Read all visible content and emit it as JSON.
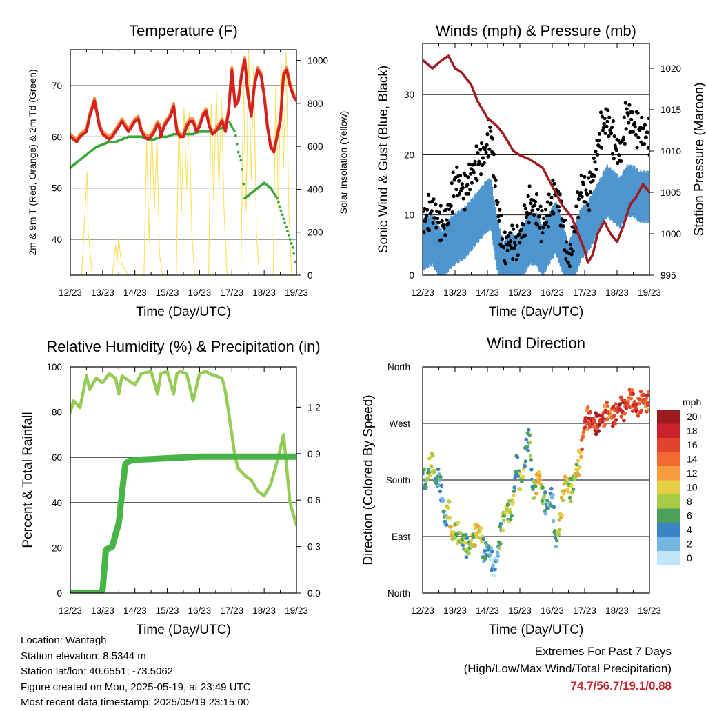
{
  "x_ticks": [
    "12/23",
    "13/23",
    "14/23",
    "15/23",
    "16/23",
    "17/23",
    "18/23",
    "19/23"
  ],
  "x_label": "Time (Day/UTC)",
  "colors": {
    "temp_red": "#d42020",
    "temp_orange": "#f08a3c",
    "dewpoint_green": "#3aa63a",
    "solar_yellow": "#f8e060",
    "gust_black": "#000000",
    "wind_blue": "#4f95cf",
    "pressure_maroon": "#a01c22",
    "rh_lightgreen": "#95cc55",
    "precip_green": "#47b445"
  },
  "chart_data": [
    {
      "type": "line",
      "title": "Temperature (F)",
      "xlabel": "Time (Day/UTC)",
      "ylabel": "2m & 9m T (Red, Orange) & 2m Td (Green)",
      "y2label": "Solar Insolation (Yellow)",
      "ylim": [
        33,
        77
      ],
      "y_ticks": [
        40,
        50,
        60,
        70
      ],
      "y2lim": [
        0,
        1050
      ],
      "y2_ticks": [
        0,
        200,
        400,
        600,
        800,
        1000
      ],
      "series": [
        {
          "key": "temp",
          "x": [
            0,
            0.1,
            0.2,
            0.3,
            0.4,
            0.5,
            0.6,
            0.75,
            0.9,
            1.0,
            1.1,
            1.2,
            1.3,
            1.4,
            1.5,
            1.6,
            1.7,
            1.8,
            1.9,
            2.0,
            2.1,
            2.2,
            2.3,
            2.4,
            2.5,
            2.6,
            2.7,
            2.75,
            2.8,
            2.9,
            3.0,
            3.1,
            3.2,
            3.3,
            3.4,
            3.5,
            3.6,
            3.7,
            3.8,
            3.9,
            4.0,
            4.1,
            4.2,
            4.3,
            4.4,
            4.5,
            4.6,
            4.7,
            4.8,
            4.9,
            5.0,
            5.1,
            5.2,
            5.3,
            5.4,
            5.5,
            5.6,
            5.7,
            5.8,
            5.9,
            6.0,
            6.1,
            6.2,
            6.3,
            6.4,
            6.5,
            6.6,
            6.7,
            6.8,
            6.9,
            7.0
          ],
          "values": [
            60,
            59.5,
            59,
            60,
            60.5,
            61,
            64,
            67,
            62,
            60.5,
            60,
            59.5,
            60,
            61,
            62,
            63,
            62,
            61,
            62,
            63,
            63.5,
            61,
            60,
            59.5,
            60,
            61,
            62.5,
            62,
            60,
            62,
            63,
            64,
            66,
            61,
            60,
            60,
            62,
            63,
            63,
            61,
            62,
            64,
            65,
            62,
            60.5,
            61,
            62,
            63,
            61,
            65,
            73,
            66,
            67,
            72,
            75,
            68,
            64,
            70,
            73,
            72,
            68,
            62,
            58,
            57,
            60,
            63,
            72,
            73,
            70,
            68,
            67
          ]
        },
        {
          "key": "dewpoint",
          "x": [
            0,
            0.2,
            0.4,
            0.6,
            0.8,
            1.0,
            1.2,
            1.4,
            1.6,
            1.8,
            2.0,
            2.2,
            2.4,
            2.6,
            2.8,
            3.0,
            3.2,
            3.4,
            3.6,
            3.8,
            4.0,
            4.2,
            4.4,
            4.6,
            4.8,
            4.9,
            5.0,
            5.1,
            5.2,
            5.3,
            5.4,
            5.6,
            5.8,
            6.0,
            6.2,
            6.3,
            6.4,
            6.5,
            6.6,
            6.7,
            6.8,
            6.9,
            7.0
          ],
          "values": [
            54,
            55,
            56,
            57,
            58,
            58.5,
            59,
            59,
            59.5,
            60,
            60,
            60,
            59.5,
            59.5,
            60,
            60,
            60.5,
            60.5,
            60.5,
            60.5,
            61,
            61,
            61,
            61.5,
            62,
            63,
            62,
            61,
            57,
            55,
            48,
            49,
            50,
            51,
            50,
            49,
            48,
            46,
            44,
            42,
            40,
            38,
            34
          ]
        },
        {
          "key": "solar",
          "x": [
            0.35,
            0.52,
            0.55,
            0.68,
            0.9,
            1.3,
            1.4,
            1.45,
            1.5,
            1.55,
            1.6,
            1.8,
            2.28,
            2.36,
            2.44,
            2.52,
            2.6,
            2.68,
            2.76,
            2.85,
            3.28,
            3.36,
            3.44,
            3.52,
            3.6,
            3.68,
            3.76,
            3.85,
            4.28,
            4.36,
            4.44,
            4.52,
            4.6,
            4.68,
            4.76,
            4.85,
            5.28,
            5.36,
            5.44,
            5.52,
            5.6,
            5.68,
            5.76,
            5.85,
            6.28,
            6.36,
            6.44,
            6.52,
            6.6,
            6.68,
            6.76,
            6.85
          ],
          "values": [
            0,
            480,
            200,
            0,
            0,
            0,
            140,
            60,
            180,
            90,
            50,
            0,
            0,
            620,
            150,
            700,
            300,
            640,
            100,
            0,
            0,
            720,
            300,
            780,
            400,
            760,
            200,
            0,
            0,
            800,
            350,
            860,
            400,
            820,
            300,
            0,
            0,
            900,
            300,
            1040,
            450,
            980,
            200,
            0,
            0,
            880,
            300,
            1000,
            500,
            1040,
            300,
            0
          ]
        }
      ]
    },
    {
      "type": "line",
      "title": "Winds (mph) & Pressure (mb)",
      "xlabel": "Time (Day/UTC)",
      "ylabel": "Sonic Wind & Gust (Blue, Black)",
      "y2label": "Station Pressure (Maroon)",
      "ylim": [
        0,
        38.5
      ],
      "y_ticks": [
        0,
        10,
        20,
        30
      ],
      "y2lim": [
        995,
        1023
      ],
      "y2_ticks": [
        995,
        1000,
        1005,
        1010,
        1015,
        1020
      ],
      "series": [
        {
          "key": "gust",
          "x": [
            0,
            0.3,
            0.6,
            0.8,
            1.0,
            1.3,
            1.6,
            1.9,
            2.1,
            2.3,
            2.5,
            2.7,
            2.9,
            3.1,
            3.3,
            3.5,
            3.7,
            3.9,
            4.1,
            4.3,
            4.5,
            4.7,
            4.9,
            5.1,
            5.3,
            5.5,
            5.7,
            5.9,
            6.1,
            6.3,
            6.5,
            6.7,
            7.0
          ],
          "values": [
            9,
            11,
            8,
            10,
            16,
            14,
            18,
            20,
            24,
            12,
            4,
            6,
            5,
            8,
            12,
            11,
            8,
            11,
            14,
            10,
            2,
            8,
            15,
            13,
            18,
            24,
            26,
            22,
            20,
            27,
            25,
            24,
            23
          ]
        },
        {
          "key": "wind",
          "x": [
            0,
            0.3,
            0.6,
            0.8,
            1.0,
            1.3,
            1.6,
            1.9,
            2.1,
            2.3,
            2.5,
            2.7,
            2.9,
            3.1,
            3.3,
            3.5,
            3.7,
            3.9,
            4.1,
            4.3,
            4.5,
            4.7,
            4.9,
            5.1,
            5.3,
            5.5,
            5.7,
            5.9,
            6.1,
            6.3,
            6.5,
            6.7,
            7.0
          ],
          "values": [
            5,
            6,
            3,
            5,
            6,
            7,
            9,
            11,
            12,
            5,
            1,
            3,
            2,
            4,
            6,
            6,
            4,
            6,
            8,
            5,
            1,
            4,
            7,
            8,
            10,
            12,
            14,
            13,
            12,
            14,
            14,
            13,
            13
          ]
        },
        {
          "key": "pressure",
          "x": [
            0,
            0.3,
            0.6,
            0.8,
            1.0,
            1.2,
            1.5,
            1.7,
            2.0,
            2.3,
            2.5,
            2.8,
            3.0,
            3.3,
            3.5,
            3.7,
            3.9,
            4.1,
            4.3,
            4.6,
            4.8,
            5.0,
            5.1,
            5.25,
            5.4,
            5.6,
            5.8,
            6.0,
            6.2,
            6.4,
            6.6,
            6.8,
            7.0
          ],
          "values": [
            1021,
            1020,
            1021,
            1021.5,
            1020,
            1019.5,
            1018,
            1016,
            1014,
            1013,
            1012,
            1010,
            1009.5,
            1009,
            1008.5,
            1008,
            1006.5,
            1005,
            1003.5,
            1002,
            1000,
            998,
            996.5,
            997.5,
            1000,
            1001.5,
            1000,
            999,
            1001,
            1003.5,
            1004.5,
            1006,
            1005
          ]
        }
      ]
    },
    {
      "type": "line",
      "title": "Relative Humidity (%) & Precipitation (in)",
      "xlabel": "Time (Day/UTC)",
      "ylabel": "Percent & Total Rainfall",
      "ylim": [
        0,
        100
      ],
      "y_ticks": [
        0,
        20,
        40,
        60,
        80,
        100
      ],
      "y2lim": [
        0,
        1.46
      ],
      "y2_ticks": [
        "0.0",
        "0.3",
        "0.6",
        "0.9",
        "1.2"
      ],
      "series": [
        {
          "key": "rh",
          "x": [
            0,
            0.1,
            0.3,
            0.5,
            0.6,
            0.8,
            1.0,
            1.2,
            1.4,
            1.5,
            1.6,
            1.8,
            2.0,
            2.2,
            2.5,
            2.7,
            2.8,
            3.0,
            3.2,
            3.3,
            3.4,
            3.6,
            3.8,
            4.0,
            4.2,
            4.3,
            4.5,
            4.7,
            4.8,
            4.9,
            5.0,
            5.1,
            5.2,
            5.4,
            5.6,
            5.8,
            6.0,
            6.2,
            6.4,
            6.6,
            6.8,
            7.0
          ],
          "values": [
            80,
            85,
            82,
            96,
            90,
            95,
            93,
            97,
            95,
            88,
            96,
            94,
            92,
            97,
            98,
            88,
            97,
            98,
            88,
            97,
            98,
            97,
            85,
            97,
            98,
            97,
            96,
            95,
            89,
            80,
            70,
            60,
            55,
            52,
            50,
            45,
            43,
            48,
            58,
            70,
            40,
            30
          ]
        },
        {
          "key": "precip",
          "x": [
            0,
            0.5,
            0.9,
            1.0,
            1.05,
            1.1,
            1.3,
            1.4,
            1.5,
            1.6,
            1.7,
            1.8,
            2.0,
            2.5,
            3.0,
            3.5,
            4.0,
            4.5,
            5.0,
            5.5,
            6.0,
            6.5,
            7.0
          ],
          "values": [
            0,
            0,
            0,
            0.02,
            0.15,
            0.28,
            0.3,
            0.38,
            0.45,
            0.65,
            0.83,
            0.85,
            0.86,
            0.865,
            0.87,
            0.875,
            0.88,
            0.88,
            0.88,
            0.88,
            0.88,
            0.88,
            0.88
          ]
        }
      ]
    },
    {
      "type": "scatter",
      "title": "Wind Direction",
      "xlabel": "Time (Day/UTC)",
      "ylabel": "Direction (Colored By Speed)",
      "ylim": [
        0,
        360
      ],
      "y_ticks": [
        "North",
        "East",
        "South",
        "West",
        "North"
      ],
      "legend_title": "mph",
      "legend_labels": [
        "20+",
        "18",
        "16",
        "14",
        "12",
        "10",
        "8",
        "6",
        "4",
        "2",
        "0"
      ],
      "legend_colors": [
        "#9b1c1f",
        "#c8232a",
        "#e0442c",
        "#f06a30",
        "#f59d3c",
        "#e6cf45",
        "#a6cb44",
        "#4aa15a",
        "#3a84c3",
        "#74b6e2",
        "#bfe5f8"
      ],
      "series": [
        {
          "key": "dir",
          "x": [
            0,
            0.1,
            0.2,
            0.3,
            0.4,
            0.5,
            0.6,
            0.7,
            0.8,
            0.9,
            1.0,
            1.1,
            1.2,
            1.3,
            1.4,
            1.5,
            1.6,
            1.7,
            1.8,
            1.9,
            2.0,
            2.1,
            2.2,
            2.3,
            2.4,
            2.5,
            2.6,
            2.7,
            2.8,
            2.9,
            3.0,
            3.1,
            3.2,
            3.3,
            3.4,
            3.5,
            3.6,
            3.7,
            3.8,
            3.9,
            4.0,
            4.1,
            4.2,
            4.3,
            4.4,
            4.5,
            4.6,
            4.7,
            4.8,
            4.9,
            5.0,
            5.1,
            5.2,
            5.3,
            5.4,
            5.5,
            5.6,
            5.7,
            5.8,
            5.9,
            6.0,
            6.1,
            6.2,
            6.3,
            6.4,
            6.5,
            6.6,
            6.7,
            6.8,
            6.9,
            7.0
          ],
          "values": [
            190,
            170,
            200,
            210,
            175,
            185,
            155,
            110,
            140,
            90,
            100,
            95,
            85,
            80,
            70,
            80,
            90,
            100,
            95,
            60,
            75,
            60,
            40,
            55,
            95,
            120,
            135,
            125,
            150,
            210,
            175,
            185,
            235,
            250,
            160,
            170,
            190,
            155,
            140,
            140,
            160,
            80,
            100,
            140,
            180,
            170,
            160,
            190,
            200,
            230,
            270,
            280,
            275,
            270,
            270,
            275,
            280,
            290,
            285,
            280,
            290,
            300,
            290,
            300,
            310,
            305,
            290,
            300,
            310,
            300,
            310
          ],
          "speeds": [
            4,
            6,
            8,
            10,
            5,
            4,
            3,
            4,
            9,
            10,
            8,
            8,
            7,
            7,
            6,
            8,
            9,
            10,
            11,
            3,
            4,
            3,
            2,
            4,
            6,
            8,
            9,
            7,
            8,
            3,
            8,
            9,
            4,
            6,
            5,
            10,
            12,
            8,
            4,
            3,
            3,
            4,
            9,
            10,
            11,
            8,
            7,
            9,
            9,
            13,
            17,
            14,
            18,
            16,
            19,
            18,
            15,
            16,
            14,
            17,
            16,
            18,
            17,
            16,
            15,
            16,
            18,
            14,
            16,
            15,
            15
          ]
        }
      ]
    }
  ],
  "info": {
    "location": "Location: Wantagh",
    "elevation": "Station elevation: 8.5344 m",
    "latlon": "Station lat/lon: 40.6551; -73.5062",
    "created": "Figure created on Mon, 2025-05-19, at 23:49 UTC",
    "latest": "Most recent data timestamp: 2025/05/19 23:15:00"
  },
  "extremes": {
    "title": "Extremes For Past 7 Days",
    "subtitle": "(High/Low/Max Wind/Total Precipitation)",
    "values": "74.7/56.7/19.1/0.88"
  }
}
